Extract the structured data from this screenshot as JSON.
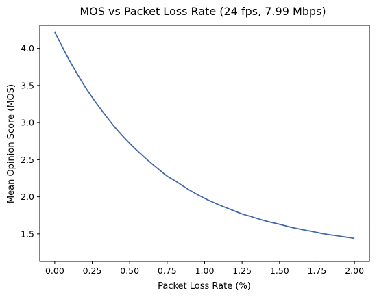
{
  "chart_data": {
    "type": "line",
    "title": "MOS vs Packet Loss Rate (24 fps, 7.99 Mbps)",
    "xlabel": "Packet Loss Rate (%)",
    "ylabel": "Mean Opinion Score (MOS)",
    "xlim": [
      -0.1,
      2.1
    ],
    "ylim": [
      1.13,
      4.31
    ],
    "xticks": [
      0.0,
      0.25,
      0.5,
      0.75,
      1.0,
      1.25,
      1.5,
      1.75,
      2.0
    ],
    "xtick_labels": [
      "0.00",
      "0.25",
      "0.50",
      "0.75",
      "1.00",
      "1.25",
      "1.50",
      "1.75",
      "2.00"
    ],
    "yticks": [
      1.5,
      2.0,
      2.5,
      3.0,
      3.5,
      4.0
    ],
    "ytick_labels": [
      "1.5",
      "2.0",
      "2.5",
      "3.0",
      "3.5",
      "4.0"
    ],
    "grid": false,
    "line_color": "#4169a8",
    "series": [
      {
        "name": "",
        "x": [
          0.0,
          0.1,
          0.2,
          0.25,
          0.3,
          0.4,
          0.5,
          0.6,
          0.7,
          0.75,
          0.8,
          0.9,
          1.0,
          1.1,
          1.2,
          1.25,
          1.3,
          1.4,
          1.5,
          1.6,
          1.7,
          1.75,
          1.8,
          1.9,
          2.0
        ],
        "y": [
          4.22,
          3.83,
          3.49,
          3.34,
          3.2,
          2.94,
          2.72,
          2.53,
          2.36,
          2.28,
          2.22,
          2.09,
          1.98,
          1.89,
          1.81,
          1.77,
          1.74,
          1.68,
          1.63,
          1.58,
          1.54,
          1.52,
          1.5,
          1.47,
          1.44
        ]
      }
    ]
  }
}
